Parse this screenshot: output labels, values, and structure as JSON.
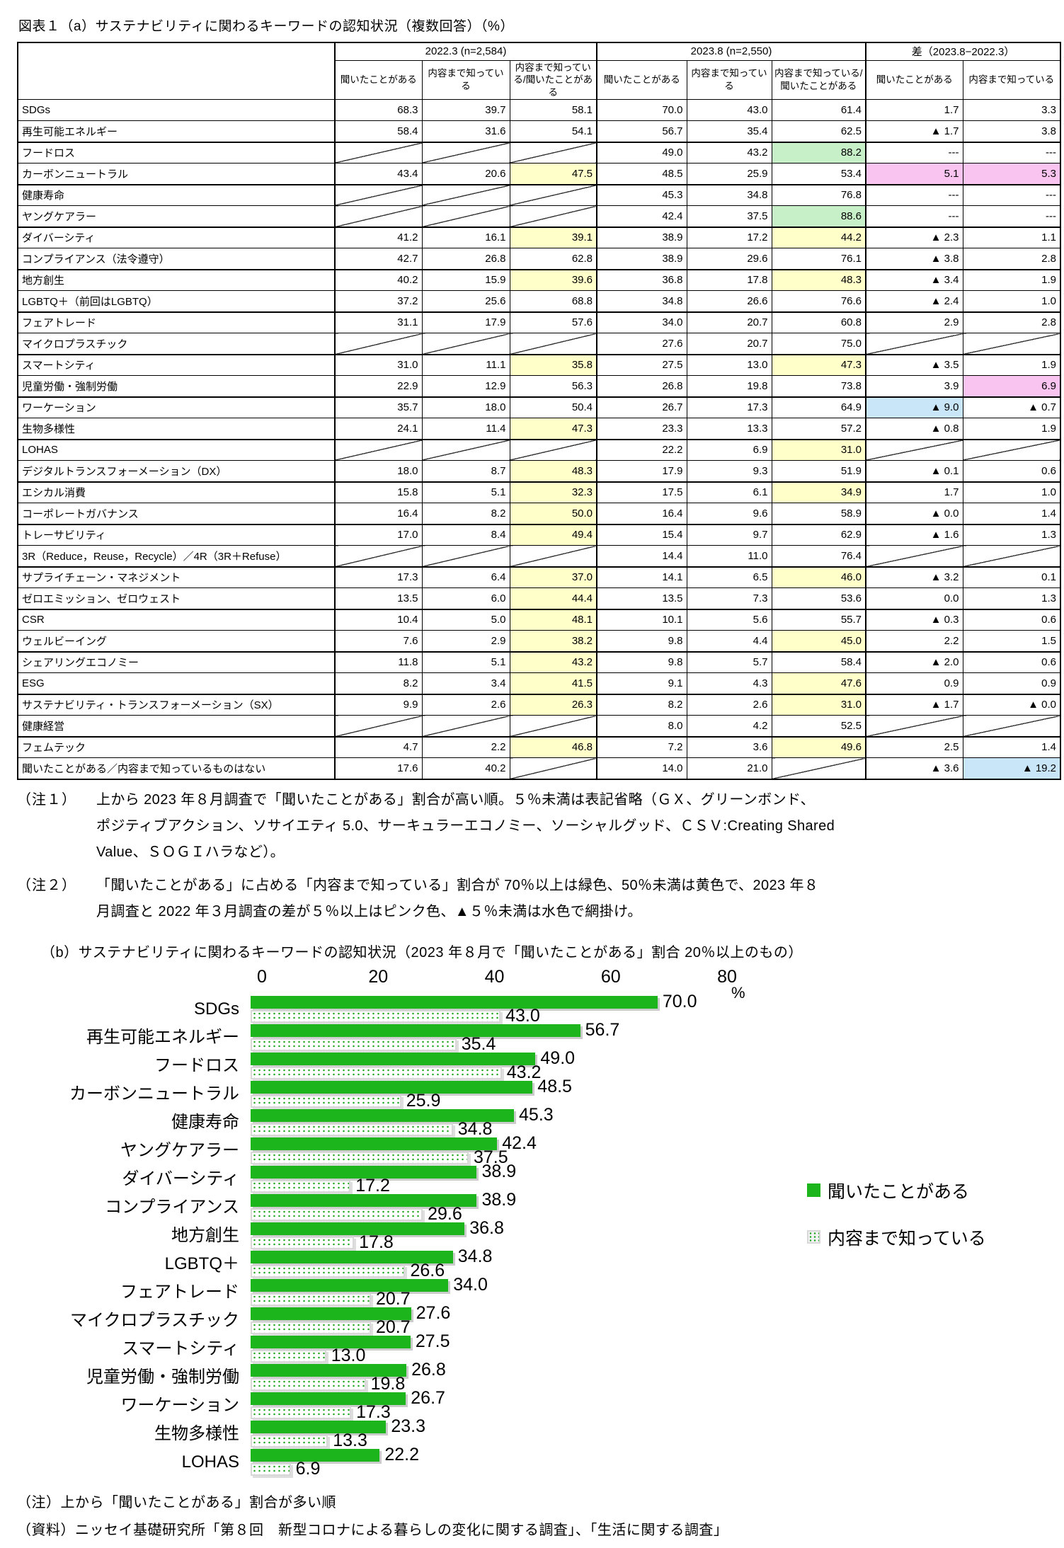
{
  "title_a": "図表１（a）サステナビリティに関わるキーワードの認知状況（複数回答）（%）",
  "colors": {
    "yellow": "#ffffc9",
    "green": "#c8f0c8",
    "pink": "#f9c4ef",
    "blue": "#c9e6f8"
  },
  "table": {
    "col_groups": [
      {
        "label": "2022.3 (n=2,584)",
        "cols": [
          "聞いたことがある",
          "内容まで知っている",
          "内容まで知っている/聞いたことがある"
        ]
      },
      {
        "label": "2023.8 (n=2,550)",
        "cols": [
          "聞いたことがある",
          "内容まで知っている",
          "内容まで知っている/聞いたことがある"
        ]
      },
      {
        "label": "差（2023.8−2022.3）",
        "cols": [
          "聞いたことがある",
          "内容まで知っている"
        ]
      }
    ],
    "rows": [
      {
        "label": "SDGs",
        "cells": [
          {
            "v": "68.3"
          },
          {
            "v": "39.7"
          },
          {
            "v": "58.1"
          },
          {
            "v": "70.0"
          },
          {
            "v": "43.0"
          },
          {
            "v": "61.4"
          },
          {
            "v": "1.7"
          },
          {
            "v": "3.3"
          }
        ]
      },
      {
        "label": "再生可能エネルギー",
        "cells": [
          {
            "v": "58.4"
          },
          {
            "v": "31.6"
          },
          {
            "v": "54.1"
          },
          {
            "v": "56.7"
          },
          {
            "v": "35.4"
          },
          {
            "v": "62.5"
          },
          {
            "v": "▲ 1.7"
          },
          {
            "v": "3.8"
          }
        ]
      },
      {
        "label": "フードロス",
        "cells": [
          {
            "diag": true
          },
          {
            "diag": true
          },
          {
            "diag": true
          },
          {
            "v": "49.0"
          },
          {
            "v": "43.2"
          },
          {
            "v": "88.2",
            "bg": "green"
          },
          {
            "v": "---"
          },
          {
            "v": "---"
          }
        ]
      },
      {
        "label": "カーボンニュートラル",
        "cells": [
          {
            "v": "43.4"
          },
          {
            "v": "20.6"
          },
          {
            "v": "47.5",
            "bg": "yellow"
          },
          {
            "v": "48.5"
          },
          {
            "v": "25.9"
          },
          {
            "v": "53.4"
          },
          {
            "v": "5.1",
            "bg": "pink"
          },
          {
            "v": "5.3",
            "bg": "pink"
          }
        ]
      },
      {
        "label": "健康寿命",
        "cells": [
          {
            "diag": true
          },
          {
            "diag": true
          },
          {
            "diag": true
          },
          {
            "v": "45.3"
          },
          {
            "v": "34.8"
          },
          {
            "v": "76.8"
          },
          {
            "v": "---"
          },
          {
            "v": "---"
          }
        ]
      },
      {
        "label": "ヤングケアラー",
        "cells": [
          {
            "diag": true
          },
          {
            "diag": true
          },
          {
            "diag": true
          },
          {
            "v": "42.4"
          },
          {
            "v": "37.5"
          },
          {
            "v": "88.6",
            "bg": "green"
          },
          {
            "v": "---"
          },
          {
            "v": "---"
          }
        ]
      },
      {
        "label": "ダイバーシティ",
        "cells": [
          {
            "v": "41.2"
          },
          {
            "v": "16.1"
          },
          {
            "v": "39.1",
            "bg": "yellow"
          },
          {
            "v": "38.9"
          },
          {
            "v": "17.2"
          },
          {
            "v": "44.2",
            "bg": "yellow"
          },
          {
            "v": "▲ 2.3"
          },
          {
            "v": "1.1"
          }
        ]
      },
      {
        "label": "コンプライアンス（法令遵守）",
        "cells": [
          {
            "v": "42.7"
          },
          {
            "v": "26.8"
          },
          {
            "v": "62.8"
          },
          {
            "v": "38.9"
          },
          {
            "v": "29.6"
          },
          {
            "v": "76.1"
          },
          {
            "v": "▲ 3.8"
          },
          {
            "v": "2.8"
          }
        ]
      },
      {
        "label": "地方創生",
        "cells": [
          {
            "v": "40.2"
          },
          {
            "v": "15.9"
          },
          {
            "v": "39.6",
            "bg": "yellow"
          },
          {
            "v": "36.8"
          },
          {
            "v": "17.8"
          },
          {
            "v": "48.3",
            "bg": "yellow"
          },
          {
            "v": "▲ 3.4"
          },
          {
            "v": "1.9"
          }
        ]
      },
      {
        "label": "LGBTQ＋（前回はLGBTQ）",
        "cells": [
          {
            "v": "37.2"
          },
          {
            "v": "25.6"
          },
          {
            "v": "68.8"
          },
          {
            "v": "34.8"
          },
          {
            "v": "26.6"
          },
          {
            "v": "76.6"
          },
          {
            "v": "▲ 2.4"
          },
          {
            "v": "1.0"
          }
        ]
      },
      {
        "label": "フェアトレード",
        "cells": [
          {
            "v": "31.1"
          },
          {
            "v": "17.9"
          },
          {
            "v": "57.6"
          },
          {
            "v": "34.0"
          },
          {
            "v": "20.7"
          },
          {
            "v": "60.8"
          },
          {
            "v": "2.9"
          },
          {
            "v": "2.8"
          }
        ]
      },
      {
        "label": "マイクロプラスチック",
        "cells": [
          {
            "diag": true
          },
          {
            "diag": true
          },
          {
            "diag": true
          },
          {
            "v": "27.6"
          },
          {
            "v": "20.7"
          },
          {
            "v": "75.0"
          },
          {
            "diag": true
          },
          {
            "diag": true
          }
        ]
      },
      {
        "label": "スマートシティ",
        "cells": [
          {
            "v": "31.0"
          },
          {
            "v": "11.1"
          },
          {
            "v": "35.8",
            "bg": "yellow"
          },
          {
            "v": "27.5"
          },
          {
            "v": "13.0"
          },
          {
            "v": "47.3",
            "bg": "yellow"
          },
          {
            "v": "▲ 3.5"
          },
          {
            "v": "1.9"
          }
        ]
      },
      {
        "label": "児童労働・強制労働",
        "cells": [
          {
            "v": "22.9"
          },
          {
            "v": "12.9"
          },
          {
            "v": "56.3"
          },
          {
            "v": "26.8"
          },
          {
            "v": "19.8"
          },
          {
            "v": "73.8"
          },
          {
            "v": "3.9"
          },
          {
            "v": "6.9",
            "bg": "pink"
          }
        ]
      },
      {
        "label": "ワーケーション",
        "cells": [
          {
            "v": "35.7"
          },
          {
            "v": "18.0"
          },
          {
            "v": "50.4"
          },
          {
            "v": "26.7"
          },
          {
            "v": "17.3"
          },
          {
            "v": "64.9"
          },
          {
            "v": "▲ 9.0",
            "bg": "blue"
          },
          {
            "v": "▲ 0.7"
          }
        ]
      },
      {
        "label": "生物多様性",
        "cells": [
          {
            "v": "24.1"
          },
          {
            "v": "11.4"
          },
          {
            "v": "47.3",
            "bg": "yellow"
          },
          {
            "v": "23.3"
          },
          {
            "v": "13.3"
          },
          {
            "v": "57.2"
          },
          {
            "v": "▲ 0.8"
          },
          {
            "v": "1.9"
          }
        ]
      },
      {
        "label": "LOHAS",
        "cells": [
          {
            "diag": true
          },
          {
            "diag": true
          },
          {
            "diag": true
          },
          {
            "v": "22.2"
          },
          {
            "v": "6.9"
          },
          {
            "v": "31.0",
            "bg": "yellow"
          },
          {
            "diag": true
          },
          {
            "diag": true
          }
        ]
      },
      {
        "label": "デジタルトランスフォーメーション（DX）",
        "cells": [
          {
            "v": "18.0"
          },
          {
            "v": "8.7"
          },
          {
            "v": "48.3",
            "bg": "yellow"
          },
          {
            "v": "17.9"
          },
          {
            "v": "9.3"
          },
          {
            "v": "51.9"
          },
          {
            "v": "▲ 0.1"
          },
          {
            "v": "0.6"
          }
        ]
      },
      {
        "label": "エシカル消費",
        "cells": [
          {
            "v": "15.8"
          },
          {
            "v": "5.1"
          },
          {
            "v": "32.3",
            "bg": "yellow"
          },
          {
            "v": "17.5"
          },
          {
            "v": "6.1"
          },
          {
            "v": "34.9",
            "bg": "yellow"
          },
          {
            "v": "1.7"
          },
          {
            "v": "1.0"
          }
        ]
      },
      {
        "label": "コーポレートガバナンス",
        "cells": [
          {
            "v": "16.4"
          },
          {
            "v": "8.2"
          },
          {
            "v": "50.0",
            "bg": "yellow"
          },
          {
            "v": "16.4"
          },
          {
            "v": "9.6"
          },
          {
            "v": "58.9"
          },
          {
            "v": "▲ 0.0"
          },
          {
            "v": "1.4"
          }
        ]
      },
      {
        "label": "トレーサビリティ",
        "cells": [
          {
            "v": "17.0"
          },
          {
            "v": "8.4"
          },
          {
            "v": "49.4",
            "bg": "yellow"
          },
          {
            "v": "15.4"
          },
          {
            "v": "9.7"
          },
          {
            "v": "62.9"
          },
          {
            "v": "▲ 1.6"
          },
          {
            "v": "1.3"
          }
        ]
      },
      {
        "label": "3R（Reduce，Reuse，Recycle）／4R（3R＋Refuse）",
        "cells": [
          {
            "diag": true
          },
          {
            "diag": true
          },
          {
            "diag": true
          },
          {
            "v": "14.4"
          },
          {
            "v": "11.0"
          },
          {
            "v": "76.4"
          },
          {
            "diag": true
          },
          {
            "diag": true
          }
        ]
      },
      {
        "label": "サプライチェーン・マネジメント",
        "cells": [
          {
            "v": "17.3"
          },
          {
            "v": "6.4"
          },
          {
            "v": "37.0",
            "bg": "yellow"
          },
          {
            "v": "14.1"
          },
          {
            "v": "6.5"
          },
          {
            "v": "46.0",
            "bg": "yellow"
          },
          {
            "v": "▲ 3.2"
          },
          {
            "v": "0.1"
          }
        ]
      },
      {
        "label": "ゼロエミッション、ゼロウェスト",
        "cells": [
          {
            "v": "13.5"
          },
          {
            "v": "6.0"
          },
          {
            "v": "44.4",
            "bg": "yellow"
          },
          {
            "v": "13.5"
          },
          {
            "v": "7.3"
          },
          {
            "v": "53.6"
          },
          {
            "v": "0.0"
          },
          {
            "v": "1.3"
          }
        ]
      },
      {
        "label": "CSR",
        "cells": [
          {
            "v": "10.4"
          },
          {
            "v": "5.0"
          },
          {
            "v": "48.1",
            "bg": "yellow"
          },
          {
            "v": "10.1"
          },
          {
            "v": "5.6"
          },
          {
            "v": "55.7"
          },
          {
            "v": "▲ 0.3"
          },
          {
            "v": "0.6"
          }
        ]
      },
      {
        "label": "ウェルビーイング",
        "cells": [
          {
            "v": "7.6"
          },
          {
            "v": "2.9"
          },
          {
            "v": "38.2",
            "bg": "yellow"
          },
          {
            "v": "9.8"
          },
          {
            "v": "4.4"
          },
          {
            "v": "45.0",
            "bg": "yellow"
          },
          {
            "v": "2.2"
          },
          {
            "v": "1.5"
          }
        ]
      },
      {
        "label": "シェアリングエコノミー",
        "cells": [
          {
            "v": "11.8"
          },
          {
            "v": "5.1"
          },
          {
            "v": "43.2",
            "bg": "yellow"
          },
          {
            "v": "9.8"
          },
          {
            "v": "5.7"
          },
          {
            "v": "58.4"
          },
          {
            "v": "▲ 2.0"
          },
          {
            "v": "0.6"
          }
        ]
      },
      {
        "label": "ESG",
        "cells": [
          {
            "v": "8.2"
          },
          {
            "v": "3.4"
          },
          {
            "v": "41.5",
            "bg": "yellow"
          },
          {
            "v": "9.1"
          },
          {
            "v": "4.3"
          },
          {
            "v": "47.6",
            "bg": "yellow"
          },
          {
            "v": "0.9"
          },
          {
            "v": "0.9"
          }
        ]
      },
      {
        "label": "サステナビリティ・トランスフォーメーション（SX）",
        "cells": [
          {
            "v": "9.9"
          },
          {
            "v": "2.6"
          },
          {
            "v": "26.3",
            "bg": "yellow"
          },
          {
            "v": "8.2"
          },
          {
            "v": "2.6"
          },
          {
            "v": "31.0",
            "bg": "yellow"
          },
          {
            "v": "▲ 1.7"
          },
          {
            "v": "▲ 0.0"
          }
        ]
      },
      {
        "label": "健康経営",
        "cells": [
          {
            "diag": true
          },
          {
            "diag": true
          },
          {
            "diag": true
          },
          {
            "v": "8.0"
          },
          {
            "v": "4.2"
          },
          {
            "v": "52.5"
          },
          {
            "diag": true
          },
          {
            "diag": true
          }
        ]
      },
      {
        "label": "フェムテック",
        "cells": [
          {
            "v": "4.7"
          },
          {
            "v": "2.2"
          },
          {
            "v": "46.8",
            "bg": "yellow"
          },
          {
            "v": "7.2"
          },
          {
            "v": "3.6"
          },
          {
            "v": "49.6",
            "bg": "yellow"
          },
          {
            "v": "2.5"
          },
          {
            "v": "1.4"
          }
        ]
      },
      {
        "label": "聞いたことがある／内容まで知っているものはない",
        "cells": [
          {
            "v": "17.6"
          },
          {
            "v": "40.2"
          },
          {
            "diag": true
          },
          {
            "v": "14.0"
          },
          {
            "v": "21.0"
          },
          {
            "diag": true
          },
          {
            "v": "▲ 3.6"
          },
          {
            "v": "▲ 19.2",
            "bg": "blue"
          }
        ]
      }
    ]
  },
  "note1_label": "（注１）",
  "note1_text": "上から 2023 年８月調査で「聞いたことがある」割合が高い順。５％未満は表記省略（ＧＸ、グリーンボンド、\nポジティブアクション、ソサイエティ 5.0、サーキュラーエコノミー、ソーシャルグッド、ＣＳＶ:Creating Shared\nValue、ＳＯＧＩハラなど）。",
  "note2_label": "（注２）",
  "note2_text": "「聞いたことがある」に占める「内容まで知っている」割合が 70％以上は緑色、50％未満は黄色で、2023 年８\n月調査と 2022 年３月調査の差が５％以上はピンク色、▲５％未満は水色で網掛け。",
  "title_b": "（b）サステナビリティに関わるキーワードの認知状況（2023 年８月で「聞いたことがある」割合 20％以上のもの）",
  "chart_data": {
    "type": "bar",
    "orientation": "horizontal",
    "categories": [
      "SDGs",
      "再生可能エネルギー",
      "フードロス",
      "カーボンニュートラル",
      "健康寿命",
      "ヤングケアラー",
      "ダイバーシティ",
      "コンプライアンス",
      "地方創生",
      "LGBTQ＋",
      "フェアトレード",
      "マイクロプラスチック",
      "スマートシティ",
      "児童労働・強制労働",
      "ワーケーション",
      "生物多様性",
      "LOHAS"
    ],
    "series": [
      {
        "name": "聞いたことがある",
        "values": [
          70.0,
          56.7,
          49.0,
          48.5,
          45.3,
          42.4,
          38.9,
          38.9,
          36.8,
          34.8,
          34.0,
          27.6,
          27.5,
          26.8,
          26.7,
          23.3,
          22.2
        ]
      },
      {
        "name": "内容まで知っている",
        "values": [
          43.0,
          35.4,
          43.2,
          25.9,
          34.8,
          37.5,
          17.2,
          29.6,
          17.8,
          26.6,
          20.7,
          20.7,
          13.0,
          19.8,
          17.3,
          13.3,
          6.9
        ]
      }
    ],
    "xlim": [
      0,
      80
    ],
    "x_ticks": [
      0,
      20,
      40,
      60,
      80
    ],
    "x_unit": "%",
    "legend_position": "right",
    "bar_color": "#1cb51c",
    "grid": false
  },
  "note_b": "（注）上から「聞いたことがある」割合が多い順",
  "source": "（資料）ニッセイ基礎研究所「第８回　新型コロナによる暮らしの変化に関する調査」、「生活に関する調査」"
}
